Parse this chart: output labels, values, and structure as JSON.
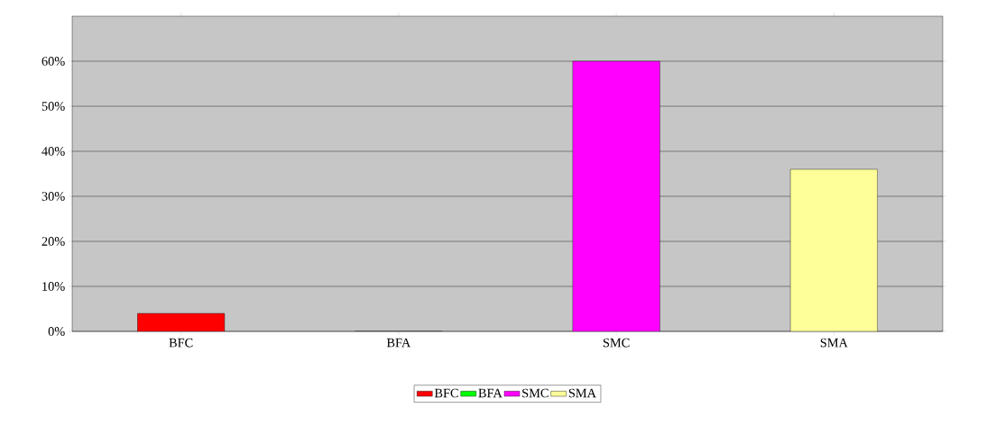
{
  "chart_data": {
    "type": "bar",
    "categories": [
      "BFC",
      "BFA",
      "SMC",
      "SMA"
    ],
    "series": [
      {
        "name": "BFC",
        "color": "#ff0000",
        "values": [
          4,
          null,
          null,
          null
        ]
      },
      {
        "name": "BFA",
        "color": "#00ff00",
        "values": [
          null,
          0,
          null,
          null
        ]
      },
      {
        "name": "SMC",
        "color": "#ff00ff",
        "values": [
          null,
          null,
          60,
          null
        ]
      },
      {
        "name": "SMA",
        "color": "#ffff99",
        "values": [
          null,
          null,
          null,
          36
        ]
      }
    ],
    "ylim": [
      0,
      70
    ],
    "yticks": [
      {
        "value": 0,
        "label": "0%"
      },
      {
        "value": 10,
        "label": "10%"
      },
      {
        "value": 20,
        "label": "20%"
      },
      {
        "value": 30,
        "label": "30%"
      },
      {
        "value": 40,
        "label": "40%"
      },
      {
        "value": 50,
        "label": "50%"
      },
      {
        "value": 60,
        "label": "60%"
      }
    ],
    "grid": "y",
    "legend": "bottom"
  }
}
